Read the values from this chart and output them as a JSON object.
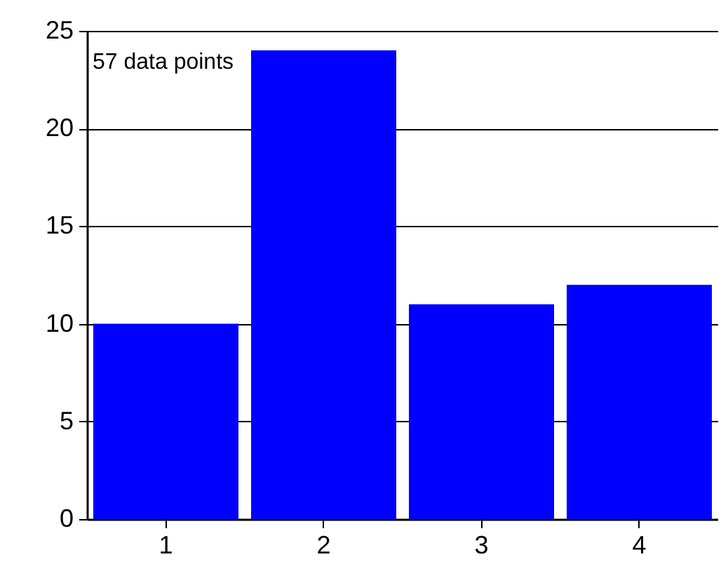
{
  "chart_data": {
    "type": "bar",
    "categories": [
      "1",
      "2",
      "3",
      "4"
    ],
    "values": [
      10,
      24,
      11,
      12
    ],
    "color": "#0000ff",
    "ylim": [
      0,
      25
    ],
    "yticks": [
      0,
      5,
      10,
      15,
      20,
      25
    ],
    "grid": "y",
    "annotations": [
      "57 data points"
    ]
  }
}
